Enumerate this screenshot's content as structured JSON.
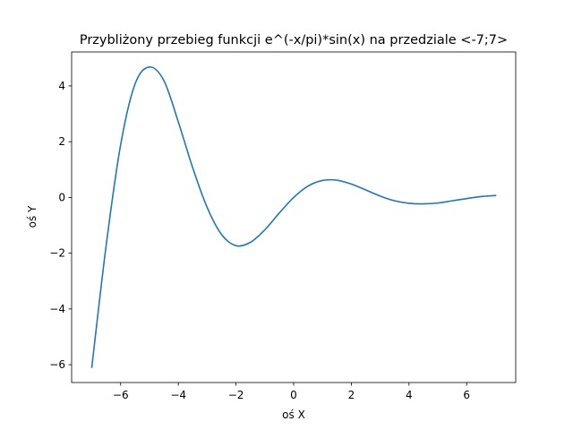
{
  "chart_data": {
    "type": "line",
    "title": "Przybliżony przebieg funkcji e^(-x/pi)*sin(x) na przedziale <-7;7>",
    "xlabel": "oś X",
    "ylabel": "oś Y",
    "xlim": [
      -7.7,
      7.7
    ],
    "ylim": [
      -6.64,
      5.22
    ],
    "xticks": [
      -6,
      -4,
      -2,
      0,
      2,
      4,
      6
    ],
    "yticks": [
      -6,
      -4,
      -2,
      0,
      2,
      4
    ],
    "xtick_labels": [
      "−6",
      "−4",
      "−2",
      "0",
      "2",
      "4",
      "6"
    ],
    "ytick_labels": [
      "−6",
      "−4",
      "−2",
      "0",
      "2",
      "4"
    ],
    "grid": false,
    "series": [
      {
        "color": "#1f77b4",
        "x": [
          -7.0,
          -6.5,
          -6.0,
          -5.5,
          -5.0,
          -4.5,
          -4.0,
          -3.5,
          -3.0,
          -2.5,
          -2.0,
          -1.5,
          -1.0,
          -0.5,
          0.0,
          0.5,
          1.0,
          1.5,
          2.0,
          2.5,
          3.0,
          3.5,
          4.0,
          4.5,
          5.0,
          5.5,
          6.0,
          6.5,
          7.0
        ],
        "y": [
          -6.09,
          -1.7,
          1.89,
          4.07,
          4.68,
          4.19,
          2.71,
          1.06,
          -0.36,
          -1.33,
          -1.73,
          -1.61,
          -1.16,
          -0.56,
          0.0,
          0.41,
          0.61,
          0.62,
          0.48,
          0.27,
          0.05,
          -0.12,
          -0.21,
          -0.23,
          -0.2,
          -0.12,
          -0.04,
          0.03,
          0.07
        ]
      }
    ]
  }
}
